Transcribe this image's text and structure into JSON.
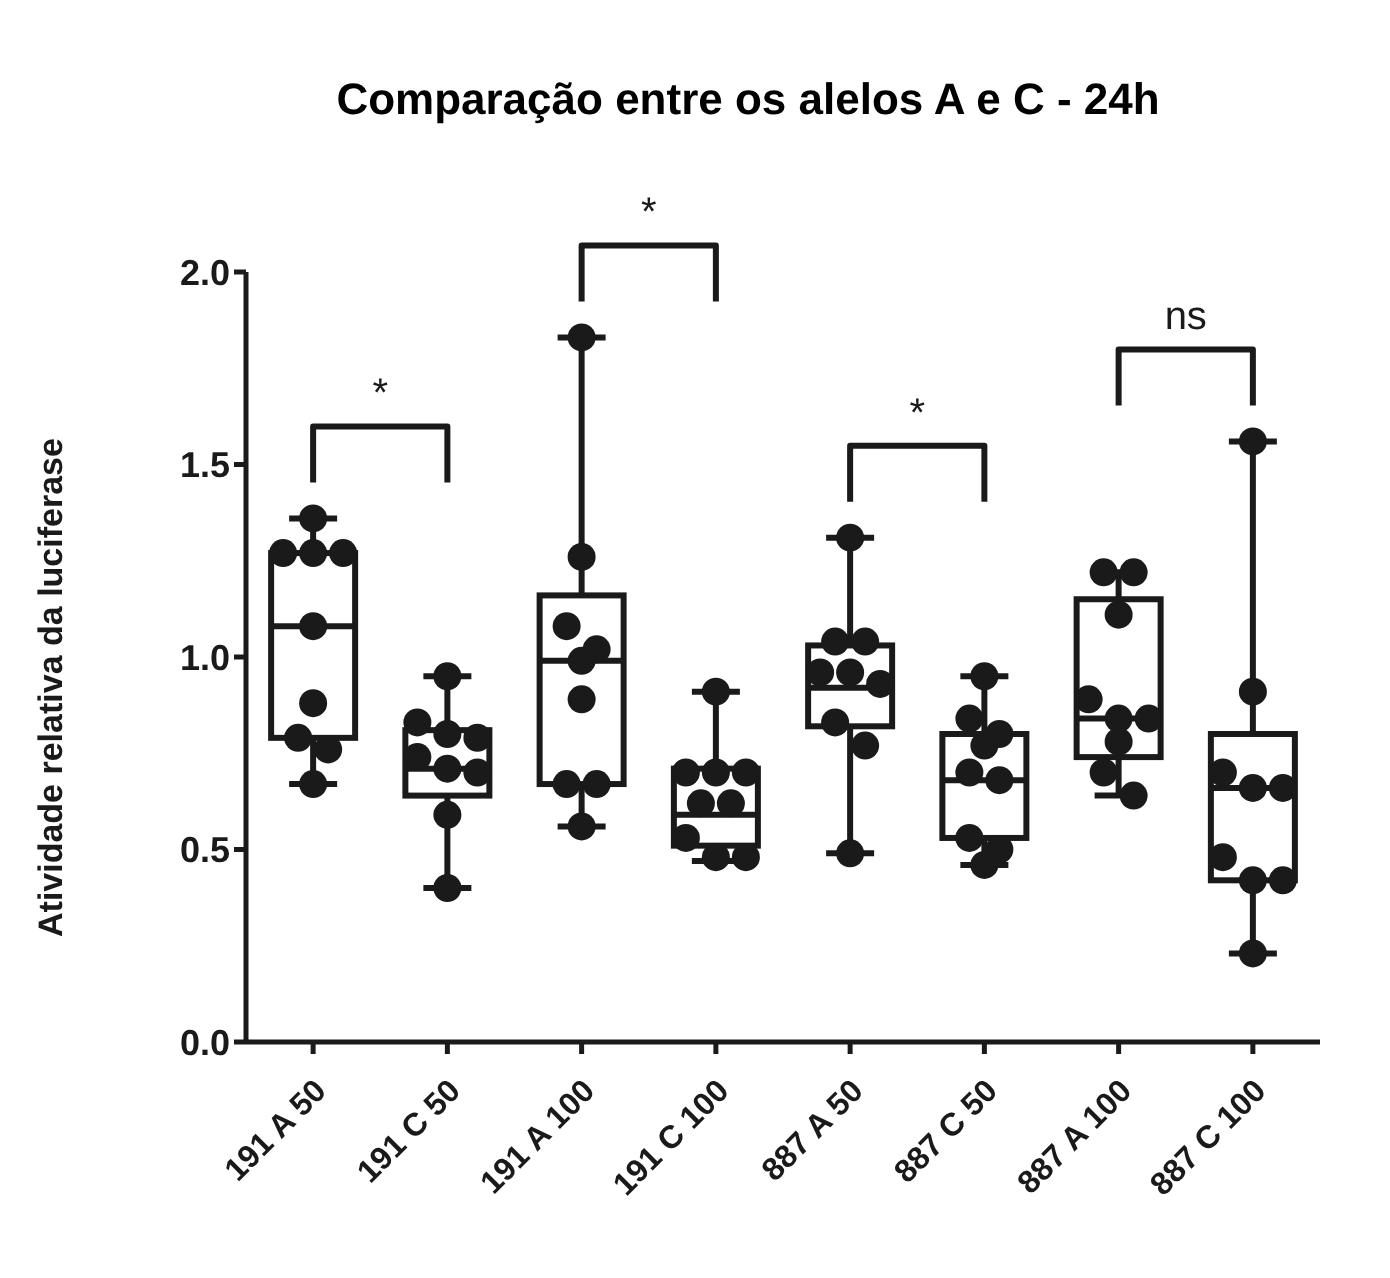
{
  "chart_data": {
    "type": "box",
    "title": "Comparação entre os alelos A e C - 24h",
    "ylabel": "Atividade relativa da luciferase",
    "categories": [
      "191 A 50",
      "191 C 50",
      "191 A 100",
      "191 C 100",
      "887 A 50",
      "887 C 50",
      "887 A 100",
      "887 C 100"
    ],
    "color": "#1a1a1a",
    "boxes": [
      {
        "low": 0.67,
        "q1": 0.79,
        "median": 1.08,
        "q3": 1.27,
        "high": 1.36
      },
      {
        "low": 0.4,
        "q1": 0.64,
        "median": 0.71,
        "q3": 0.81,
        "high": 0.95
      },
      {
        "low": 0.56,
        "q1": 0.67,
        "median": 0.99,
        "q3": 1.16,
        "high": 1.83
      },
      {
        "low": 0.47,
        "q1": 0.51,
        "median": 0.59,
        "q3": 0.71,
        "high": 0.91
      },
      {
        "low": 0.49,
        "q1": 0.82,
        "median": 0.92,
        "q3": 1.03,
        "high": 1.31
      },
      {
        "low": 0.46,
        "q1": 0.53,
        "median": 0.68,
        "q3": 0.8,
        "high": 0.95
      },
      {
        "low": 0.64,
        "q1": 0.74,
        "median": 0.84,
        "q3": 1.15,
        "high": 1.22
      },
      {
        "low": 0.23,
        "q1": 0.42,
        "median": 0.66,
        "q3": 0.8,
        "high": 1.56
      }
    ],
    "series": [
      {
        "type": "scatter",
        "color": "#1a1a1a",
        "x": [
          "191 A 50",
          "191 A 50",
          "191 A 50",
          "191 A 50",
          "191 A 50",
          "191 A 50",
          "191 A 50",
          "191 A 50",
          "191 A 50",
          "191 C 50",
          "191 C 50",
          "191 C 50",
          "191 C 50",
          "191 C 50",
          "191 C 50",
          "191 C 50",
          "191 C 50",
          "191 C 50",
          "191 A 100",
          "191 A 100",
          "191 A 100",
          "191 A 100",
          "191 A 100",
          "191 A 100",
          "191 A 100",
          "191 A 100",
          "191 A 100",
          "191 C 100",
          "191 C 100",
          "191 C 100",
          "191 C 100",
          "191 C 100",
          "191 C 100",
          "191 C 100",
          "191 C 100",
          "191 C 100",
          "887 A 50",
          "887 A 50",
          "887 A 50",
          "887 A 50",
          "887 A 50",
          "887 A 50",
          "887 A 50",
          "887 A 50",
          "887 A 50",
          "887 C 50",
          "887 C 50",
          "887 C 50",
          "887 C 50",
          "887 C 50",
          "887 C 50",
          "887 C 50",
          "887 C 50",
          "887 C 50",
          "887 A 100",
          "887 A 100",
          "887 A 100",
          "887 A 100",
          "887 A 100",
          "887 A 100",
          "887 A 100",
          "887 A 100",
          "887 A 100",
          "887 C 100",
          "887 C 100",
          "887 C 100",
          "887 C 100",
          "887 C 100",
          "887 C 100",
          "887 C 100",
          "887 C 100",
          "887 C 100"
        ],
        "values": [
          1.36,
          1.27,
          1.27,
          1.27,
          1.08,
          0.88,
          0.79,
          0.76,
          0.67,
          0.95,
          0.83,
          0.8,
          0.79,
          0.74,
          0.71,
          0.7,
          0.59,
          0.4,
          1.83,
          1.26,
          1.08,
          1.02,
          0.99,
          0.89,
          0.67,
          0.67,
          0.56,
          0.91,
          0.7,
          0.7,
          0.7,
          0.62,
          0.62,
          0.53,
          0.48,
          0.48,
          1.31,
          1.04,
          1.04,
          0.96,
          0.96,
          0.93,
          0.83,
          0.77,
          0.49,
          0.95,
          0.84,
          0.8,
          0.77,
          0.7,
          0.68,
          0.53,
          0.5,
          0.46,
          1.22,
          1.22,
          1.11,
          0.89,
          0.84,
          0.84,
          0.78,
          0.7,
          0.64,
          1.56,
          0.91,
          0.7,
          0.66,
          0.66,
          0.48,
          0.42,
          0.42,
          0.23
        ]
      }
    ],
    "ylim": [
      0,
      2
    ],
    "yticks": [
      {
        "value": 0,
        "label": "0.0"
      },
      {
        "value": 0.5,
        "label": "0.5"
      },
      {
        "value": 1,
        "label": "1.0"
      },
      {
        "value": 1.5,
        "label": "1.5"
      },
      {
        "value": 2,
        "label": "2.0"
      }
    ],
    "annotations": [
      "*",
      "*",
      "*",
      "ns"
    ]
  }
}
